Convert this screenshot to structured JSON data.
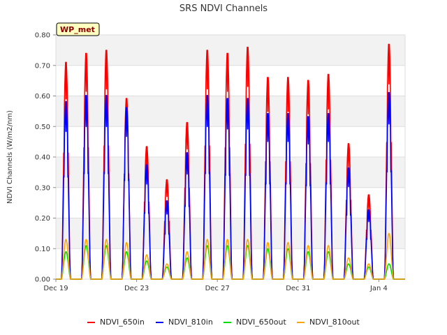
{
  "chart_data": {
    "type": "line",
    "title": "SRS NDVI Channels",
    "ylabel": "NDVI Channels (W/m2/nm)",
    "xlabel": "",
    "ylim": [
      0,
      0.8
    ],
    "xlim_days": [
      0,
      17.3
    ],
    "yticks": [
      {
        "value": 0.0,
        "label": "0.00"
      },
      {
        "value": 0.1,
        "label": "0.10"
      },
      {
        "value": 0.2,
        "label": "0.20"
      },
      {
        "value": 0.3,
        "label": "0.30"
      },
      {
        "value": 0.4,
        "label": "0.40"
      },
      {
        "value": 0.5,
        "label": "0.50"
      },
      {
        "value": 0.6,
        "label": "0.60"
      },
      {
        "value": 0.7,
        "label": "0.70"
      },
      {
        "value": 0.8,
        "label": "0.80"
      }
    ],
    "xticks": [
      {
        "day": 0,
        "label": "Dec 19"
      },
      {
        "day": 4,
        "label": "Dec 23"
      },
      {
        "day": 8,
        "label": "Dec 27"
      },
      {
        "day": 12,
        "label": "Dec 31"
      },
      {
        "day": 16,
        "label": "Jan 4"
      }
    ],
    "site_label": "WP_met",
    "daily_peaks": {
      "note": "approximate midday peak per day, day index from Dec 19",
      "day_center_offset": 0.5,
      "day_width": 0.45,
      "series": [
        {
          "name": "NDVI_650in",
          "color": "#ff0000",
          "peaks": [
            0.72,
            0.75,
            0.76,
            0.6,
            0.44,
            0.33,
            0.52,
            0.76,
            0.75,
            0.77,
            0.67,
            0.67,
            0.66,
            0.68,
            0.45,
            0.28,
            0.78
          ]
        },
        {
          "name": "NDVI_810in",
          "color": "#0000ff",
          "peaks": [
            0.59,
            0.61,
            0.61,
            0.57,
            0.38,
            0.26,
            0.42,
            0.61,
            0.6,
            0.6,
            0.55,
            0.55,
            0.54,
            0.55,
            0.37,
            0.23,
            0.62
          ]
        },
        {
          "name": "NDVI_650out",
          "color": "#00dd00",
          "peaks": [
            0.09,
            0.11,
            0.11,
            0.09,
            0.06,
            0.04,
            0.07,
            0.11,
            0.11,
            0.11,
            0.1,
            0.1,
            0.09,
            0.09,
            0.05,
            0.04,
            0.05
          ]
        },
        {
          "name": "NDVI_810out",
          "color": "#ffa500",
          "peaks": [
            0.13,
            0.13,
            0.13,
            0.12,
            0.08,
            0.05,
            0.09,
            0.13,
            0.13,
            0.13,
            0.12,
            0.12,
            0.11,
            0.11,
            0.07,
            0.05,
            0.15
          ]
        }
      ]
    }
  },
  "legend": [
    {
      "name": "NDVI_650in",
      "color": "#ff0000"
    },
    {
      "name": "NDVI_810in",
      "color": "#0000ff"
    },
    {
      "name": "NDVI_650out",
      "color": "#00dd00"
    },
    {
      "name": "NDVI_810out",
      "color": "#ffa500"
    }
  ]
}
